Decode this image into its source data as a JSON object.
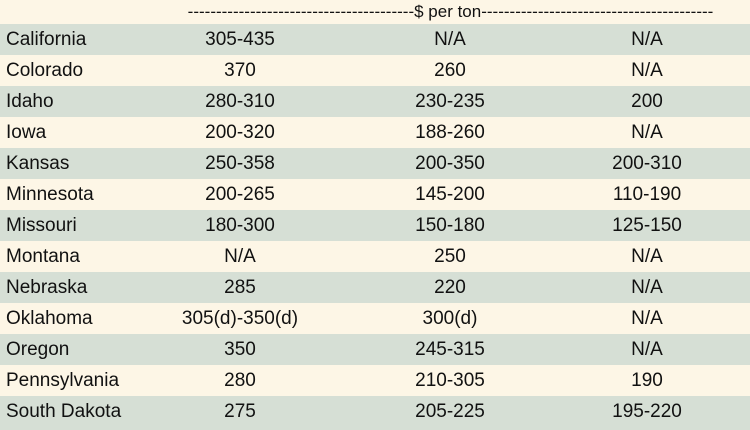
{
  "header": {
    "unit_span": "----------------------------------------$ per ton-----------------------------------------"
  },
  "rows": [
    {
      "state": "California",
      "c1": "305-435",
      "c2": "N/A",
      "c3": "N/A"
    },
    {
      "state": "Colorado",
      "c1": "370",
      "c2": "260",
      "c3": "N/A"
    },
    {
      "state": "Idaho",
      "c1": "280-310",
      "c2": "230-235",
      "c3": "200"
    },
    {
      "state": "Iowa",
      "c1": "200-320",
      "c2": "188-260",
      "c3": "N/A"
    },
    {
      "state": "Kansas",
      "c1": "250-358",
      "c2": "200-350",
      "c3": "200-310"
    },
    {
      "state": "Minnesota",
      "c1": "200-265",
      "c2": "145-200",
      "c3": "110-190"
    },
    {
      "state": "Missouri",
      "c1": "180-300",
      "c2": "150-180",
      "c3": "125-150"
    },
    {
      "state": "Montana",
      "c1": "N/A",
      "c2": "250",
      "c3": "N/A"
    },
    {
      "state": "Nebraska",
      "c1": "285",
      "c2": "220",
      "c3": "N/A"
    },
    {
      "state": "Oklahoma",
      "c1": "305(d)-350(d)",
      "c2": "300(d)",
      "c3": "N/A"
    },
    {
      "state": "Oregon",
      "c1": "350",
      "c2": "245-315",
      "c3": "N/A"
    },
    {
      "state": "Pennsylvania",
      "c1": "280",
      "c2": "210-305",
      "c3": "190"
    },
    {
      "state": "South Dakota",
      "c1": "275",
      "c2": "205-225",
      "c3": "195-220"
    }
  ],
  "colors": {
    "row_alt": "#d6dfd5",
    "row_plain": "#fdf6e6",
    "text": "#111111"
  }
}
